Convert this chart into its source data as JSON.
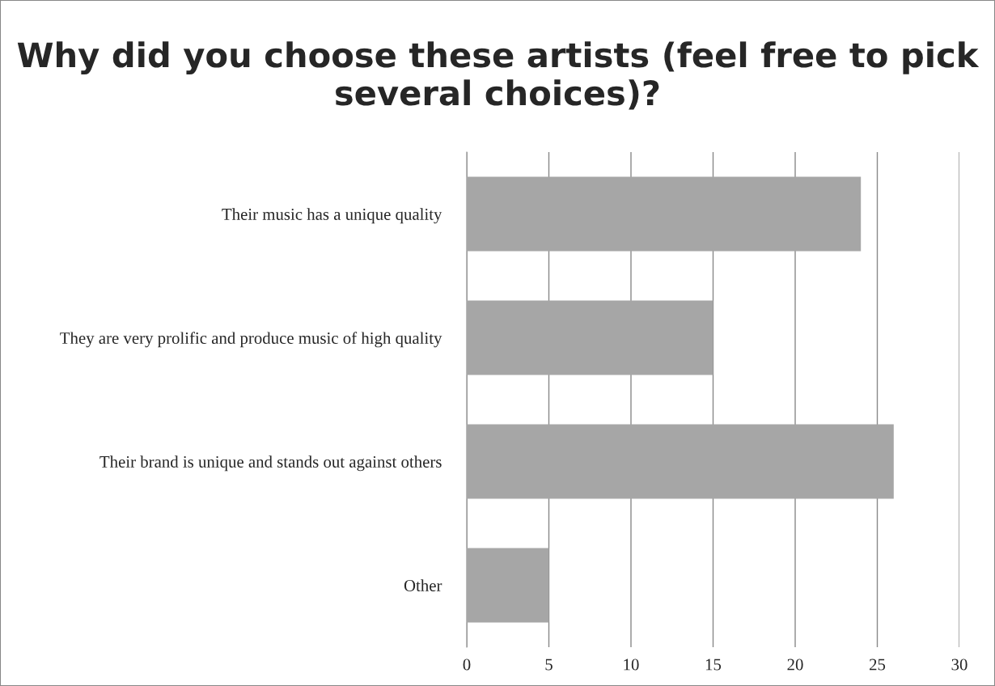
{
  "chart_data": {
    "type": "bar",
    "orientation": "horizontal",
    "title": "Why did you choose these artists (feel free to pick several choices)?",
    "categories": [
      "Their music has a unique quality",
      "They are very prolific and produce music of high quality",
      "Their brand is unique and stands out against others",
      "Other"
    ],
    "values": [
      24,
      15,
      26,
      5
    ],
    "color": "#a6a6a6",
    "xlim": [
      0,
      30
    ],
    "xticks": [
      0,
      5,
      10,
      15,
      20,
      25,
      30
    ],
    "grid": "x"
  }
}
